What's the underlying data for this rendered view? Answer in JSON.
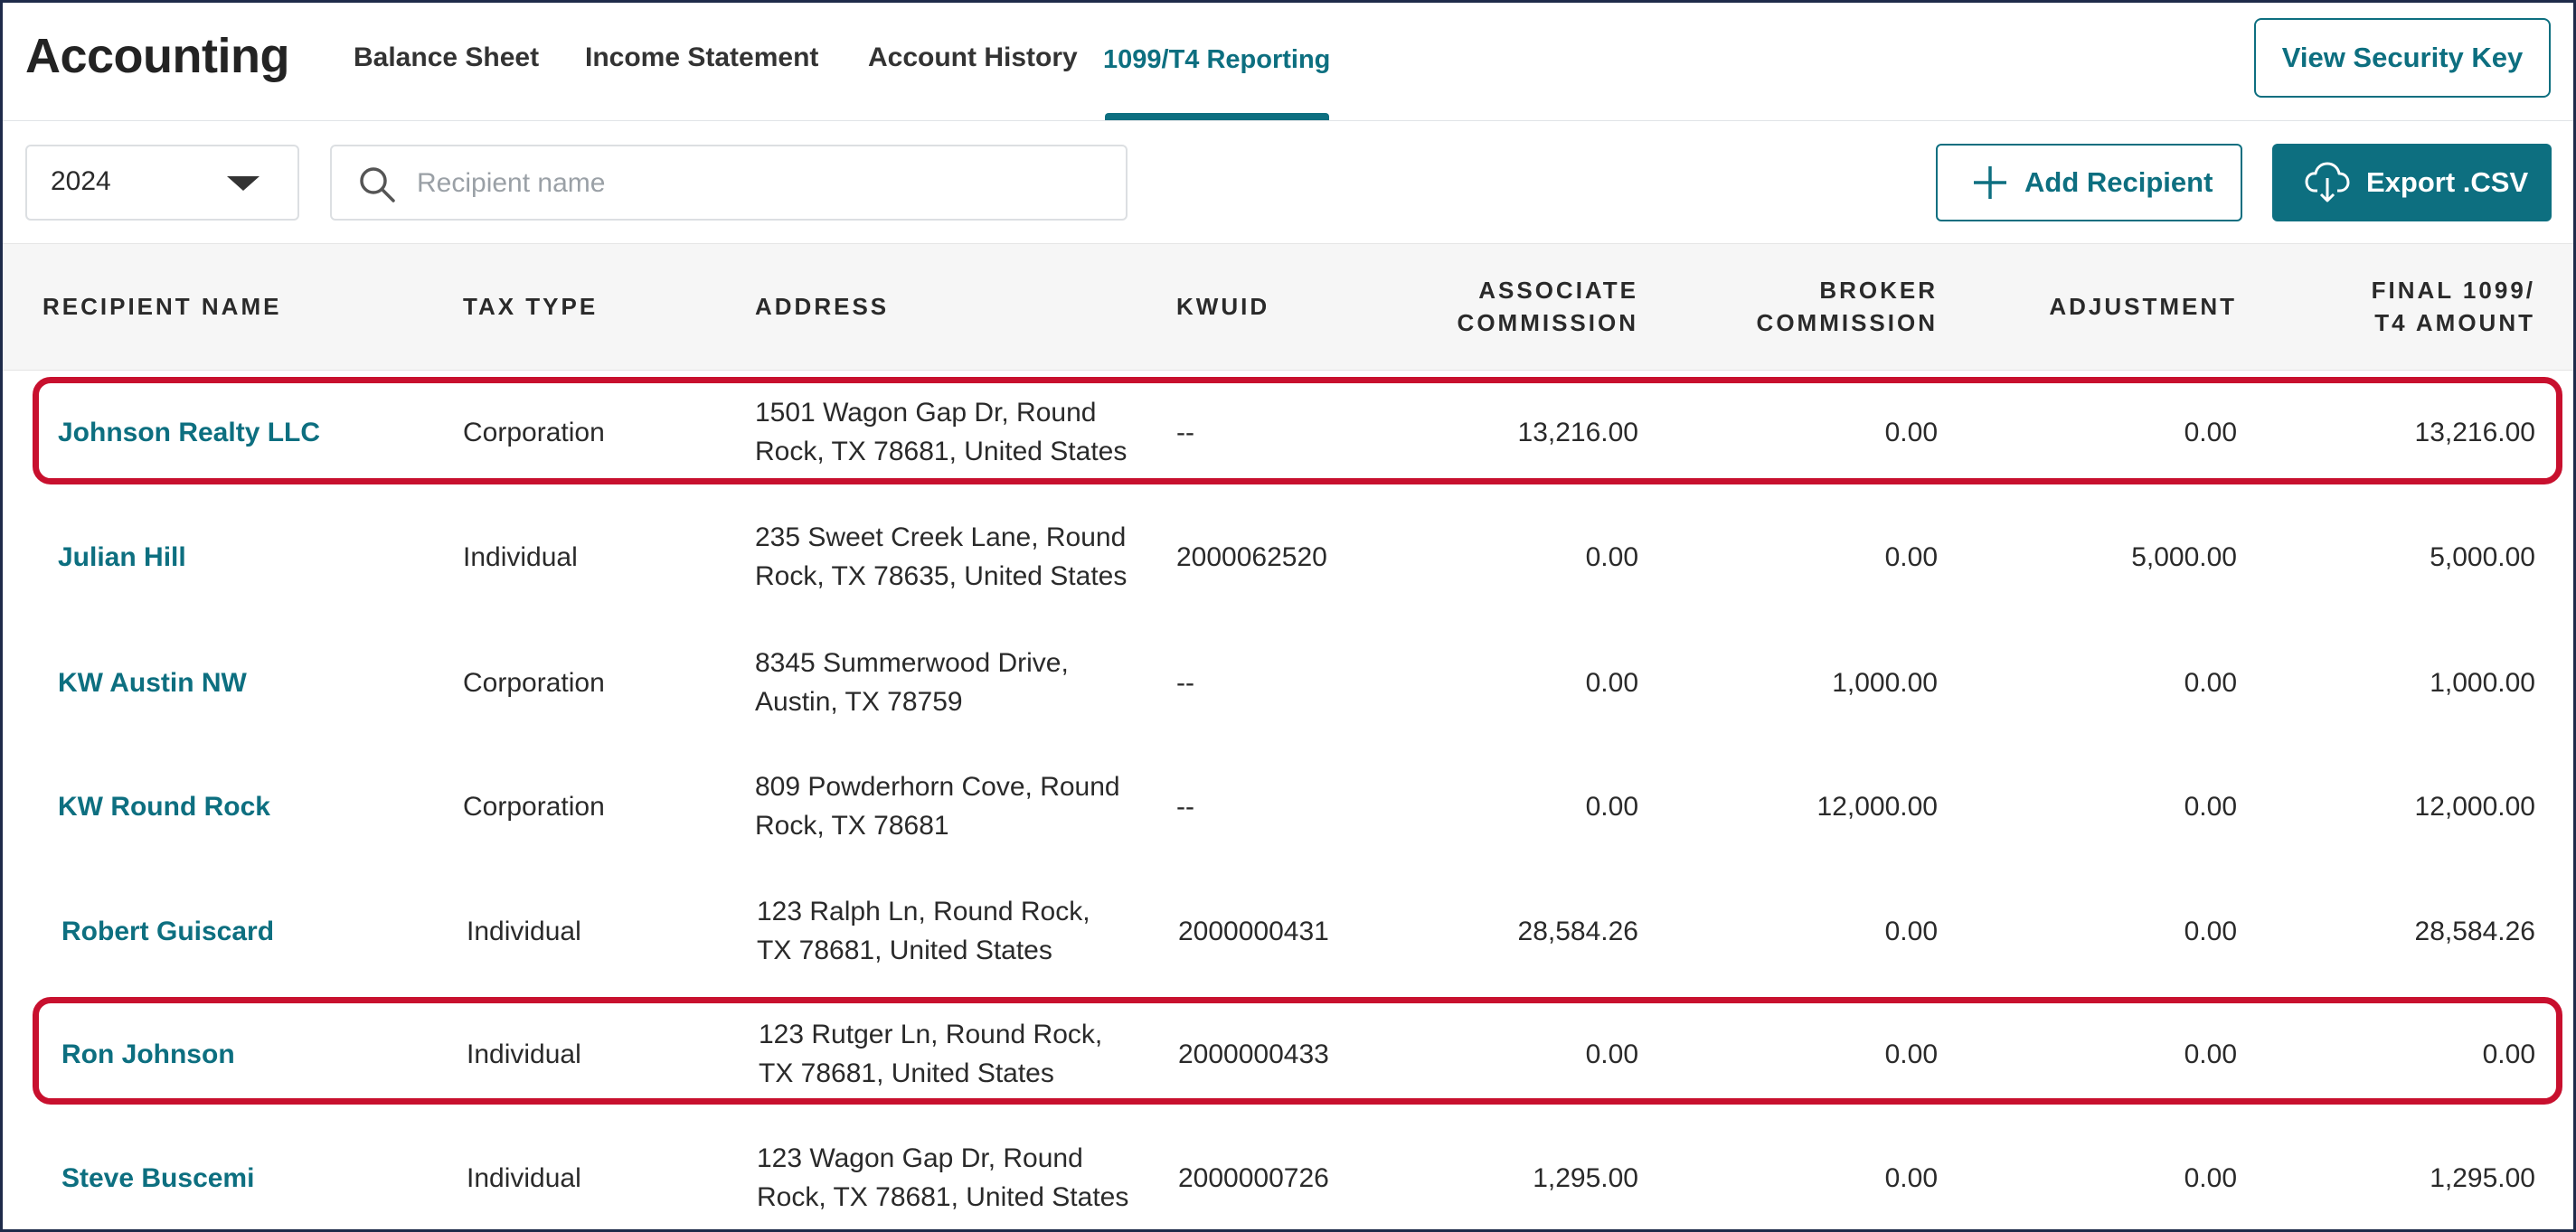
{
  "app": {
    "title": "Accounting"
  },
  "nav": {
    "tabs": [
      {
        "label": "Balance Sheet"
      },
      {
        "label": "Income Statement"
      },
      {
        "label": "Account History"
      },
      {
        "label": "1099/T4 Reporting",
        "active": true
      }
    ],
    "security_button": "View Security Key"
  },
  "toolbar": {
    "year": "2024",
    "search_placeholder": "Recipient name",
    "search_value": "",
    "add_button": "Add Recipient",
    "export_button": "Export .CSV"
  },
  "table": {
    "columns": {
      "recipient_name": "RECIPIENT NAME",
      "tax_type": "TAX TYPE",
      "address": "ADDRESS",
      "kwuid": "KWUID",
      "associate_commission": [
        "ASSOCIATE",
        "COMMISSION"
      ],
      "broker_commission": [
        "BROKER",
        "COMMISSION"
      ],
      "adjustment": "ADJUSTMENT",
      "final_amount": [
        "FINAL 1099/",
        "T4 AMOUNT"
      ]
    },
    "rows": [
      {
        "name": "Johnson Realty LLC",
        "tax_type": "Corporation",
        "address": [
          "1501 Wagon Gap Dr, Round",
          "Rock, TX 78681, United States"
        ],
        "kwuid": "--",
        "associate": "13,216.00",
        "broker": "0.00",
        "adjustment": "0.00",
        "final": "13,216.00",
        "highlighted": true
      },
      {
        "name": "Julian Hill",
        "tax_type": "Individual",
        "address": [
          "235 Sweet Creek Lane, Round",
          "Rock, TX 78635, United States"
        ],
        "kwuid": "2000062520",
        "associate": "0.00",
        "broker": "0.00",
        "adjustment": "5,000.00",
        "final": "5,000.00"
      },
      {
        "name": "KW Austin NW",
        "tax_type": "Corporation",
        "address": [
          "8345 Summerwood Drive,",
          "Austin, TX 78759"
        ],
        "kwuid": "--",
        "associate": "0.00",
        "broker": "1,000.00",
        "adjustment": "0.00",
        "final": "1,000.00"
      },
      {
        "name": "KW Round Rock",
        "tax_type": "Corporation",
        "address": [
          "809 Powderhorn Cove, Round",
          "Rock, TX 78681"
        ],
        "kwuid": "--",
        "associate": "0.00",
        "broker": "12,000.00",
        "adjustment": "0.00",
        "final": "12,000.00"
      },
      {
        "name": "Robert Guiscard",
        "tax_type": "Individual",
        "address": [
          "123 Ralph Ln, Round Rock,",
          "TX 78681, United States"
        ],
        "kwuid": "2000000431",
        "associate": "28,584.26",
        "broker": "0.00",
        "adjustment": "0.00",
        "final": "28,584.26"
      },
      {
        "name": "Ron Johnson",
        "tax_type": "Individual",
        "address": [
          "123 Rutger Ln, Round Rock,",
          "TX 78681, United States"
        ],
        "kwuid": "2000000433",
        "associate": "0.00",
        "broker": "0.00",
        "adjustment": "0.00",
        "final": "0.00",
        "highlighted": true
      },
      {
        "name": "Steve Buscemi",
        "tax_type": "Individual",
        "address": [
          "123 Wagon Gap Dr, Round",
          "Rock, TX 78681, United States"
        ],
        "kwuid": "2000000726",
        "associate": "1,295.00",
        "broker": "0.00",
        "adjustment": "0.00",
        "final": "1,295.00"
      }
    ]
  },
  "colors": {
    "accent": "#0d6f80",
    "highlight": "#c8102e"
  },
  "icons": {
    "search": "search-icon",
    "dropdown": "caret-down-icon",
    "add": "plus-icon",
    "export": "cloud-download-icon"
  }
}
